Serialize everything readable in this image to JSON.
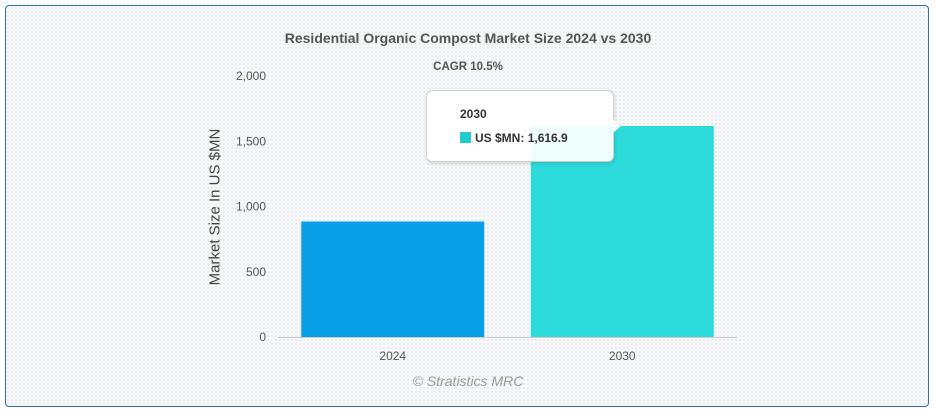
{
  "chart_data": {
    "type": "bar",
    "title": "Residential Organic Compost Market Size 2024 vs 2030",
    "subtitle": "CAGR 10.5%",
    "categories": [
      "2024",
      "2030"
    ],
    "series": [
      {
        "name": "US $MN",
        "values": [
          885,
          1616.9
        ]
      }
    ],
    "bar_colors": [
      "#0aa0e8",
      "#2ddbdb"
    ],
    "xlabel": "",
    "ylabel": "Market Size In US $MN",
    "ylim": [
      0,
      2000
    ],
    "yticks": [
      0,
      500,
      1000,
      1500,
      2000
    ],
    "ytick_labels": [
      "0",
      "500",
      "1,000",
      "1,500",
      "2,000"
    ],
    "grid": false,
    "credit": "© Stratistics MRC",
    "tooltip": {
      "category": "2030",
      "series_label": "US $MN",
      "value_text": "1,616.9",
      "swatch_color": "#22cccc"
    }
  }
}
